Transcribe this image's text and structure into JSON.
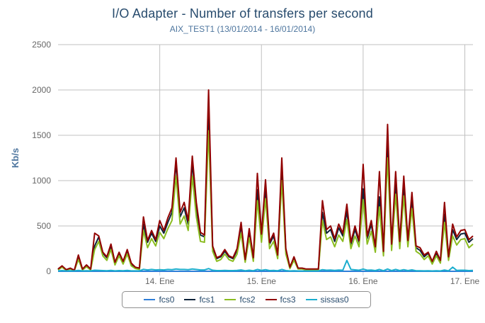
{
  "chart_data": {
    "type": "line",
    "title": "I/O Adapter - Number of transfers per second",
    "subtitle": "AIX_TEST1 (13/01/2014 - 16/01/2014)",
    "ylabel": "Kb/s",
    "ylim": [
      0,
      2500
    ],
    "yticks": [
      "0",
      "500",
      "1000",
      "1500",
      "2000",
      "2500"
    ],
    "xlim": [
      13.0,
      17.08
    ],
    "xticks": [
      {
        "value": 14,
        "label": "14. Ene"
      },
      {
        "value": 15,
        "label": "15. Ene"
      },
      {
        "value": 16,
        "label": "16. Ene"
      },
      {
        "value": 17,
        "label": "17. Ene"
      }
    ],
    "grid": true,
    "legend_position": "bottom-center",
    "x": [
      13.0,
      13.04,
      13.08,
      13.12,
      13.16,
      13.2,
      13.24,
      13.28,
      13.32,
      13.36,
      13.4,
      13.44,
      13.48,
      13.52,
      13.56,
      13.6,
      13.64,
      13.68,
      13.72,
      13.76,
      13.8,
      13.84,
      13.88,
      13.92,
      13.96,
      14.0,
      14.04,
      14.08,
      14.12,
      14.16,
      14.2,
      14.24,
      14.28,
      14.32,
      14.36,
      14.4,
      14.44,
      14.48,
      14.52,
      14.56,
      14.6,
      14.64,
      14.68,
      14.72,
      14.76,
      14.8,
      14.84,
      14.88,
      14.92,
      14.96,
      15.0,
      15.04,
      15.08,
      15.12,
      15.16,
      15.2,
      15.24,
      15.28,
      15.32,
      15.36,
      15.4,
      15.44,
      15.48,
      15.52,
      15.56,
      15.6,
      15.64,
      15.68,
      15.72,
      15.76,
      15.8,
      15.84,
      15.88,
      15.92,
      15.96,
      16.0,
      16.04,
      16.08,
      16.12,
      16.16,
      16.2,
      16.24,
      16.28,
      16.32,
      16.36,
      16.4,
      16.44,
      16.48,
      16.52,
      16.56,
      16.6,
      16.64,
      16.68,
      16.72,
      16.76,
      16.8,
      16.84,
      16.88,
      16.92,
      16.96,
      17.0,
      17.04,
      17.08
    ],
    "series": [
      {
        "name": "fcs0",
        "color": "#2f7ed8",
        "values": [
          0,
          0,
          0,
          0,
          0,
          0,
          0,
          0,
          0,
          0,
          0,
          0,
          0,
          0,
          0,
          0,
          0,
          0,
          0,
          0,
          0,
          0,
          0,
          0,
          0,
          0,
          0,
          0,
          0,
          0,
          0,
          0,
          0,
          0,
          0,
          0,
          0,
          0,
          0,
          0,
          0,
          0,
          0,
          0,
          0,
          0,
          0,
          0,
          0,
          0,
          0,
          0,
          0,
          0,
          0,
          0,
          0,
          0,
          0,
          0,
          0,
          0,
          0,
          0,
          0,
          0,
          0,
          0,
          0,
          0,
          0,
          0,
          0,
          0,
          0,
          0,
          0,
          0,
          0,
          0,
          0,
          0,
          0,
          0,
          0,
          0,
          0,
          0,
          0,
          0,
          0,
          0,
          0,
          0,
          0,
          0,
          0,
          0,
          0,
          0,
          0,
          0,
          0
        ]
      },
      {
        "name": "fcs1",
        "color": "#0d233a",
        "values": [
          20,
          55,
          15,
          30,
          10,
          160,
          20,
          60,
          20,
          280,
          380,
          200,
          150,
          280,
          90,
          200,
          100,
          230,
          80,
          40,
          30,
          520,
          320,
          420,
          330,
          500,
          420,
          540,
          650,
          1200,
          600,
          700,
          520,
          1200,
          700,
          400,
          380,
          1800,
          260,
          140,
          160,
          220,
          160,
          140,
          230,
          500,
          120,
          430,
          140,
          900,
          380,
          920,
          300,
          390,
          170,
          1150,
          230,
          40,
          150,
          30,
          30,
          20,
          20,
          20,
          20,
          650,
          420,
          460,
          330,
          480,
          390,
          660,
          300,
          460,
          320,
          910,
          360,
          520,
          250,
          820,
          200,
          1450,
          280,
          980,
          300,
          960,
          320,
          800,
          260,
          230,
          160,
          200,
          100,
          200,
          110,
          630,
          150,
          460,
          350,
          410,
          420,
          320,
          360
        ]
      },
      {
        "name": "fcs2",
        "color": "#8bbc21",
        "values": [
          15,
          45,
          10,
          25,
          8,
          130,
          15,
          50,
          15,
          240,
          330,
          170,
          120,
          240,
          70,
          170,
          80,
          190,
          60,
          30,
          20,
          450,
          260,
          360,
          280,
          430,
          360,
          470,
          560,
          1050,
          520,
          610,
          450,
          1050,
          600,
          330,
          320,
          1550,
          220,
          110,
          130,
          190,
          130,
          110,
          190,
          420,
          100,
          370,
          110,
          780,
          320,
          800,
          250,
          330,
          140,
          1000,
          190,
          30,
          120,
          25,
          25,
          15,
          15,
          15,
          15,
          560,
          350,
          380,
          270,
          400,
          330,
          570,
          250,
          390,
          270,
          790,
          300,
          440,
          210,
          710,
          170,
          1250,
          230,
          850,
          250,
          830,
          270,
          690,
          220,
          190,
          130,
          170,
          80,
          170,
          90,
          540,
          120,
          390,
          290,
          350,
          360,
          260,
          300
        ]
      },
      {
        "name": "fcs3",
        "color": "#910000",
        "values": [
          25,
          60,
          18,
          35,
          12,
          180,
          25,
          70,
          25,
          420,
          390,
          210,
          160,
          300,
          100,
          210,
          110,
          240,
          90,
          45,
          35,
          600,
          340,
          450,
          350,
          560,
          450,
          590,
          700,
          1250,
          650,
          760,
          560,
          1270,
          760,
          430,
          400,
          2000,
          280,
          150,
          170,
          240,
          170,
          150,
          250,
          540,
          130,
          470,
          150,
          1080,
          410,
          1010,
          320,
          420,
          180,
          1250,
          250,
          45,
          160,
          35,
          35,
          25,
          25,
          25,
          25,
          780,
          460,
          500,
          360,
          520,
          420,
          740,
          320,
          500,
          340,
          1180,
          390,
          560,
          270,
          1100,
          220,
          1620,
          300,
          1100,
          330,
          1050,
          340,
          870,
          280,
          260,
          180,
          210,
          110,
          220,
          120,
          760,
          160,
          520,
          380,
          450,
          460,
          350,
          390
        ]
      },
      {
        "name": "sissas0",
        "color": "#1aadce",
        "values": [
          5,
          8,
          5,
          6,
          5,
          10,
          5,
          6,
          5,
          12,
          10,
          8,
          6,
          10,
          5,
          8,
          6,
          10,
          5,
          5,
          5,
          22,
          15,
          20,
          15,
          18,
          15,
          20,
          18,
          25,
          20,
          20,
          18,
          25,
          20,
          15,
          15,
          30,
          12,
          8,
          8,
          10,
          8,
          8,
          10,
          15,
          6,
          12,
          6,
          20,
          10,
          18,
          8,
          10,
          6,
          20,
          8,
          4,
          6,
          4,
          4,
          4,
          4,
          4,
          4,
          18,
          12,
          14,
          10,
          14,
          12,
          120,
          20,
          16,
          12,
          25,
          12,
          14,
          8,
          20,
          6,
          25,
          8,
          20,
          8,
          18,
          8,
          16,
          6,
          6,
          5,
          6,
          4,
          6,
          4,
          14,
          5,
          45,
          10,
          12,
          12,
          8,
          10
        ]
      }
    ]
  }
}
